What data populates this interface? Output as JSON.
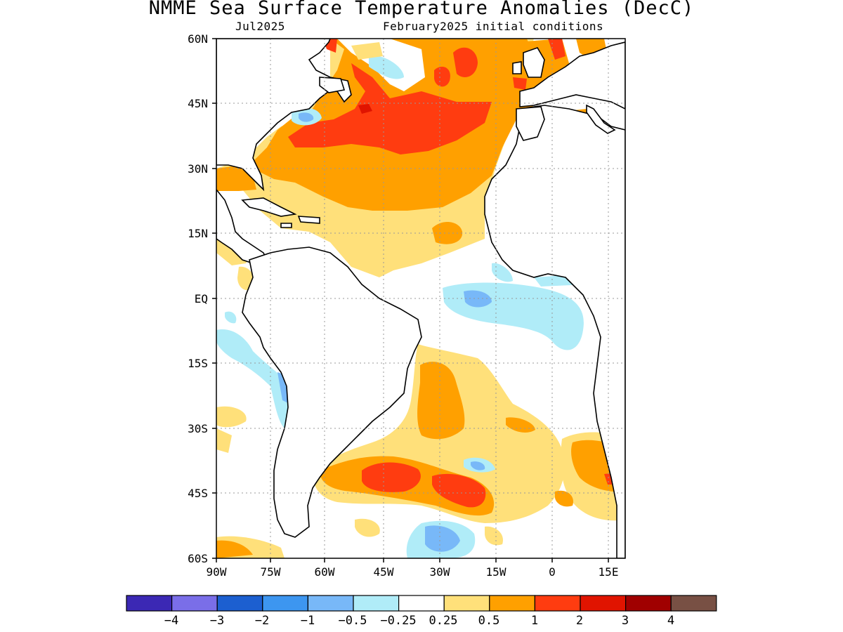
{
  "map": {
    "title": "NMME Sea Surface Temperature Anomalies (DecC)",
    "valid_month": "Jul2025",
    "initial_conditions": "February2025 initial conditions",
    "lat_labels": [
      "60N",
      "45N",
      "30N",
      "15N",
      "EQ",
      "15S",
      "30S",
      "45S",
      "60S"
    ],
    "lon_labels": [
      "90W",
      "75W",
      "60W",
      "45W",
      "30W",
      "15W",
      "0",
      "15E"
    ],
    "colorbar": {
      "colors": [
        "#3b28b4",
        "#7a6ee8",
        "#1c5fd0",
        "#3d96f0",
        "#78b8f8",
        "#b0ecf8",
        "#ffffff",
        "#ffe07a",
        "#ffa000",
        "#ff3c10",
        "#e01400",
        "#a00000",
        "#785044"
      ],
      "labels": [
        "−4",
        "−3",
        "−2",
        "−1",
        "−0.5",
        "−0.25",
        "0.25",
        "0.5",
        "1",
        "2",
        "3",
        "4"
      ]
    }
  }
}
